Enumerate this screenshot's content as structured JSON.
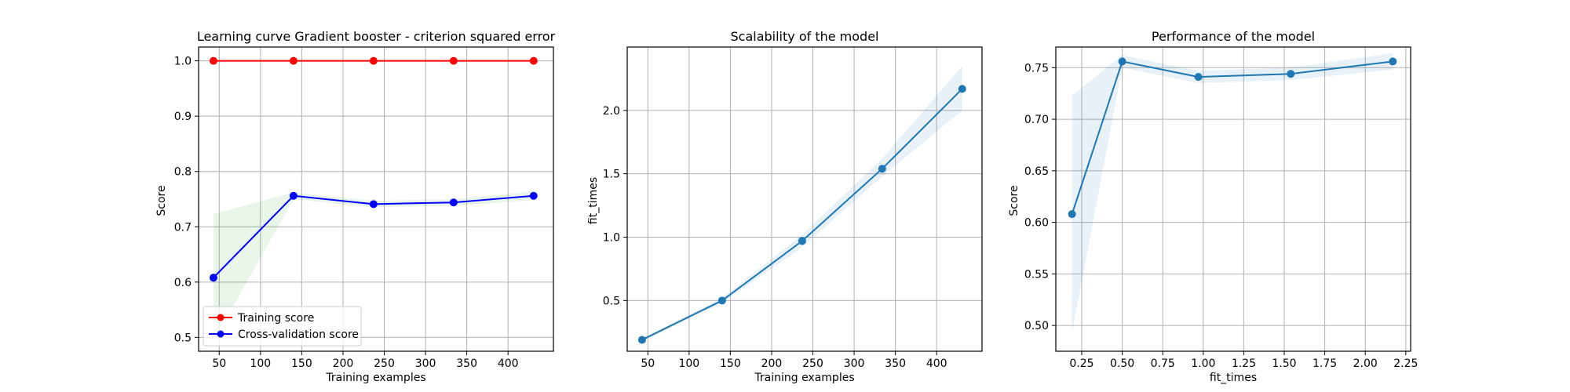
{
  "colors": {
    "training": "#ff0000",
    "cross_validation": "#0000ff",
    "cv_band": "#2ca02c",
    "default_line": "#1f77b4",
    "grid": "#b0b0b0"
  },
  "chart_data": [
    {
      "type": "line",
      "title": "Learning curve Gradient booster - criterion squared error",
      "xlabel": "Training examples",
      "ylabel": "Score",
      "xlim": [
        25,
        455
      ],
      "ylim": [
        0.475,
        1.025
      ],
      "xticks": [
        50,
        100,
        150,
        200,
        250,
        300,
        350,
        400
      ],
      "yticks": [
        0.5,
        0.6,
        0.7,
        0.8,
        0.9,
        1.0
      ],
      "grid": true,
      "legend": "lower-left",
      "series": [
        {
          "name": "Training score",
          "color": "#ff0000",
          "x": [
            43,
            140,
            237,
            334,
            431
          ],
          "y": [
            1.0,
            1.0,
            1.0,
            1.0,
            1.0
          ],
          "band_lower": [
            1.0,
            1.0,
            1.0,
            1.0,
            1.0
          ],
          "band_upper": [
            1.0,
            1.0,
            1.0,
            1.0,
            1.0
          ],
          "band_color": "#ff0000"
        },
        {
          "name": "Cross-validation score",
          "color": "#0000ff",
          "x": [
            43,
            140,
            237,
            334,
            431
          ],
          "y": [
            0.608,
            0.756,
            0.741,
            0.744,
            0.756
          ],
          "band_lower": [
            0.493,
            0.75,
            0.735,
            0.738,
            0.748
          ],
          "band_upper": [
            0.723,
            0.762,
            0.747,
            0.75,
            0.764
          ],
          "band_color": "#2ca02c"
        }
      ]
    },
    {
      "type": "line",
      "title": "Scalability of the model",
      "xlabel": "Training examples",
      "ylabel": "fit_times",
      "xlim": [
        25,
        455
      ],
      "ylim": [
        0.1,
        2.5
      ],
      "xticks": [
        50,
        100,
        150,
        200,
        250,
        300,
        350,
        400
      ],
      "yticks": [
        0.5,
        1.0,
        1.5,
        2.0
      ],
      "grid": true,
      "series": [
        {
          "color": "#1f77b4",
          "x": [
            43,
            140,
            237,
            334,
            431
          ],
          "y": [
            0.19,
            0.5,
            0.97,
            1.54,
            2.17
          ],
          "band_lower": [
            0.18,
            0.48,
            0.92,
            1.48,
            2.0
          ],
          "band_upper": [
            0.2,
            0.52,
            1.02,
            1.62,
            2.35
          ],
          "band_color": "#1f77b4"
        }
      ]
    },
    {
      "type": "line",
      "title": "Performance of the model",
      "xlabel": "fit_times",
      "ylabel": "Score",
      "xlim": [
        0.09,
        2.28
      ],
      "ylim": [
        0.475,
        0.77
      ],
      "xticks": [
        0.25,
        0.5,
        0.75,
        1.0,
        1.25,
        1.5,
        1.75,
        2.0,
        2.25
      ],
      "yticks": [
        0.5,
        0.55,
        0.6,
        0.65,
        0.7,
        0.75
      ],
      "grid": true,
      "series": [
        {
          "color": "#1f77b4",
          "x": [
            0.19,
            0.5,
            0.97,
            1.54,
            2.17
          ],
          "y": [
            0.608,
            0.756,
            0.741,
            0.744,
            0.756
          ],
          "band_lower": [
            0.493,
            0.75,
            0.735,
            0.738,
            0.748
          ],
          "band_upper": [
            0.723,
            0.762,
            0.747,
            0.75,
            0.764
          ],
          "band_color": "#1f77b4"
        }
      ]
    }
  ]
}
